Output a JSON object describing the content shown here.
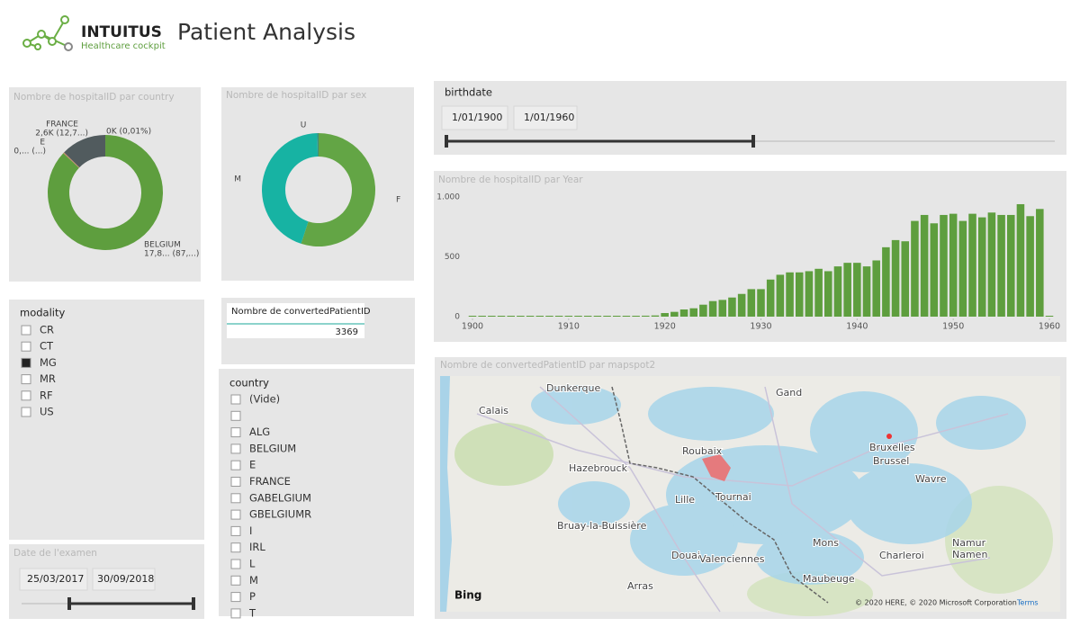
{
  "header": {
    "brand": "INTUITUS",
    "tagline": "Healthcare cockpit",
    "title": "Patient Analysis"
  },
  "country_donut": {
    "type": "pie",
    "title": "Nombre de hospitalID par country",
    "categories": [
      null,
      "BELGIUM",
      "E",
      "FRANCE"
    ],
    "values": [
      2,
      17800,
      60,
      2600
    ],
    "value_labels": [
      "0K (0,01%)",
      "17,8... (87,...)",
      "0,... (...)",
      "2,6K (12,7...)"
    ],
    "colors": [
      "#e0584f",
      "#5e9e3e",
      "#c98a6a",
      "#515b5e"
    ]
  },
  "sex_donut": {
    "type": "pie",
    "title": "Nombre de hospitalID par sex",
    "categories": [
      "F",
      "M",
      "U"
    ],
    "values": [
      55,
      44.6,
      0.4
    ],
    "colors": [
      "#63a545",
      "#17b3a3",
      "#3b8f7f"
    ]
  },
  "birthdate_slicer": {
    "title": "birthdate",
    "start": "1/01/1900",
    "end": "1/01/1960"
  },
  "year_chart": {
    "type": "bar",
    "title": "Nombre de hospitalID par Year",
    "color": "#5e9e3e",
    "x": [
      1900,
      1901,
      1902,
      1903,
      1904,
      1905,
      1906,
      1907,
      1908,
      1909,
      1910,
      1911,
      1912,
      1913,
      1914,
      1915,
      1916,
      1917,
      1918,
      1919,
      1920,
      1921,
      1922,
      1923,
      1924,
      1925,
      1926,
      1927,
      1928,
      1929,
      1930,
      1931,
      1932,
      1933,
      1934,
      1935,
      1936,
      1937,
      1938,
      1939,
      1940,
      1941,
      1942,
      1943,
      1944,
      1945,
      1946,
      1947,
      1948,
      1949,
      1950,
      1951,
      1952,
      1953,
      1954,
      1955,
      1956,
      1957,
      1958,
      1959,
      1960
    ],
    "values": [
      5,
      0,
      0,
      5,
      5,
      0,
      5,
      5,
      5,
      5,
      5,
      5,
      5,
      5,
      5,
      5,
      5,
      5,
      8,
      10,
      30,
      40,
      60,
      70,
      100,
      130,
      140,
      160,
      190,
      230,
      230,
      310,
      350,
      370,
      370,
      380,
      400,
      380,
      420,
      450,
      450,
      420,
      470,
      580,
      640,
      630,
      800,
      850,
      780,
      850,
      860,
      800,
      860,
      830,
      870,
      850,
      850,
      940,
      840,
      900,
      5
    ],
    "xlim": [
      1900,
      1960
    ],
    "xticks": [
      1900,
      1910,
      1920,
      1930,
      1940,
      1950,
      1960
    ],
    "ylim": [
      0,
      1000
    ],
    "yticks": [
      0,
      500,
      {
        "value": 1000,
        "label": "1.000"
      }
    ]
  },
  "card": {
    "title": "Nombre de convertedPatientID",
    "value": 3369
  },
  "modality_slicer": {
    "title": "modality",
    "items": [
      "CR",
      "CT",
      "MG",
      "MR",
      "RF",
      "US"
    ],
    "selected": "MG"
  },
  "country_slicer": {
    "title": "country",
    "items": [
      "(Vide)",
      null,
      "ALG",
      "BELGIUM",
      "E",
      "FRANCE",
      "GABELGIUM",
      "GBELGIUMR",
      "I",
      "IRL",
      "L",
      "M",
      "P",
      "T"
    ]
  },
  "date_slicer": {
    "title": "Date de l'examen",
    "start": "25/03/2017",
    "end": "30/09/2018"
  },
  "map": {
    "title": "Nombre de convertedPatientID par mapspot2",
    "places": [
      "Dunkerque",
      "Calais",
      "Gand",
      "Hazebrouck",
      "Roubaix",
      "Lille",
      "Tournai",
      "Bruxelles",
      "Brussel",
      "Wavre",
      "Bruay-la-Buissière",
      "Mons",
      "Douai",
      "Valenciennes",
      "Charleroi",
      "Namur",
      "Namen",
      "Maubeuge",
      "Arras"
    ],
    "provider": "Bing",
    "copyright": "© 2020 HERE, © 2020 Microsoft Corporation",
    "terms": "Terms"
  }
}
